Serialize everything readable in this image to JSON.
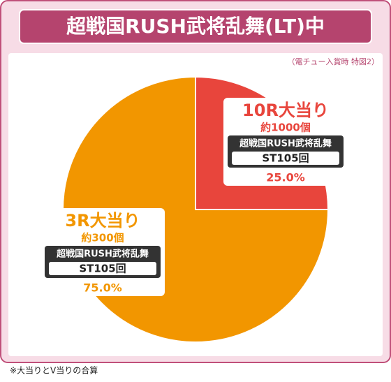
{
  "chart_data": {
    "type": "pie",
    "title": "超戦国RUSH武将乱舞(LT)中",
    "subtitle": "（電チュー入賞時 特図2）",
    "categories": [
      "10R大当り",
      "3R大当り"
    ],
    "values": [
      25,
      75
    ],
    "value_labels": [
      "25.0%",
      "75.0%"
    ],
    "colors": [
      "#e8453c",
      "#f29600"
    ],
    "payouts": [
      "約1000個",
      "約300個"
    ],
    "modes": [
      "超戦国RUSH武将乱舞",
      "超戦国RUSH武将乱舞"
    ],
    "st": [
      "ST105回",
      "ST105回"
    ],
    "note": "※大当りとV当りの合算"
  }
}
